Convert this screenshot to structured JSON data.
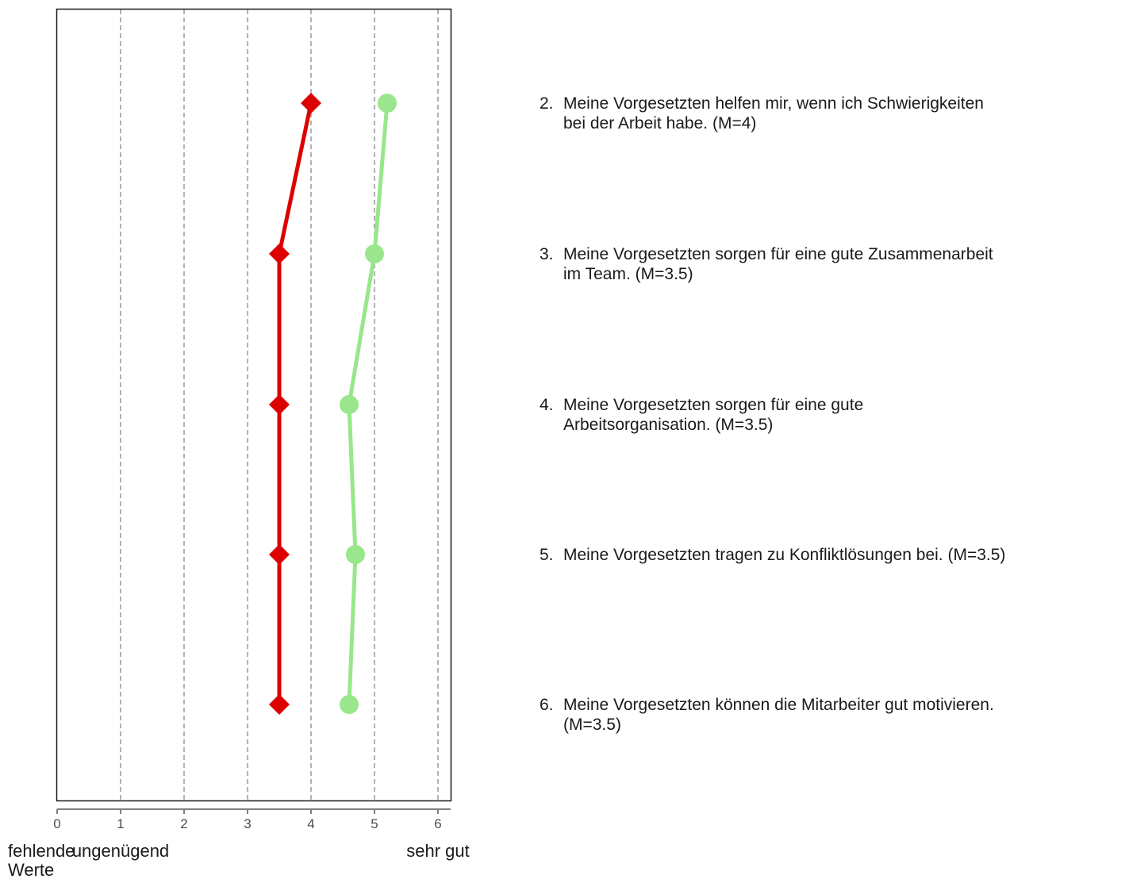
{
  "chart_data": {
    "type": "line",
    "xlim": [
      0,
      6.2
    ],
    "x_ticks": [
      0,
      1,
      2,
      3,
      4,
      5,
      6
    ],
    "x_anchor_labels": [
      {
        "value": 0,
        "lines": [
          "fehlende",
          "Werte"
        ]
      },
      {
        "value": 1,
        "lines": [
          "ungenügend"
        ]
      },
      {
        "value": 6,
        "lines": [
          "sehr gut"
        ]
      }
    ],
    "grid": "dashed vertical lines at each tick",
    "legend": "none",
    "items": [
      {
        "number": "2.",
        "lines": [
          "Meine Vorgesetzten helfen mir, wenn ich Schwierigkeiten",
          "bei der Arbeit habe. (M=4)"
        ]
      },
      {
        "number": "3.",
        "lines": [
          "Meine Vorgesetzten sorgen für eine gute Zusammenarbeit",
          "im Team. (M=3.5)"
        ]
      },
      {
        "number": "4.",
        "lines": [
          "Meine Vorgesetzten sorgen für eine gute",
          "Arbeitsorganisation. (M=3.5)"
        ]
      },
      {
        "number": "5.",
        "lines": [
          "Meine Vorgesetzten tragen zu Konfliktlösungen bei. (M=3.5)"
        ]
      },
      {
        "number": "6.",
        "lines": [
          "Meine Vorgesetzten können die Mitarbeiter gut motivieren.",
          "(M=3.5)"
        ]
      }
    ],
    "series": [
      {
        "color": "#dd0000",
        "marker": "diamond",
        "values": [
          4,
          3.5,
          3.5,
          3.5,
          3.5
        ]
      },
      {
        "color": "#99e68c",
        "marker": "circle",
        "values": [
          5.2,
          5.0,
          4.6,
          4.7,
          4.6
        ]
      }
    ]
  }
}
